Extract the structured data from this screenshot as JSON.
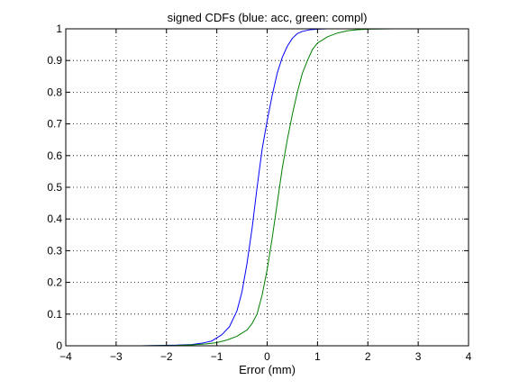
{
  "chart_data": {
    "type": "line",
    "title": "signed CDFs (blue: acc, green: compl)",
    "xlabel": "Error (mm)",
    "ylabel": "",
    "xlim": [
      -4,
      4
    ],
    "ylim": [
      0,
      1
    ],
    "xticks": [
      -4,
      -3,
      -2,
      -1,
      0,
      1,
      2,
      3,
      4
    ],
    "yticks": [
      0,
      0.1,
      0.2,
      0.3,
      0.4,
      0.5,
      0.6,
      0.7,
      0.8,
      0.9,
      1
    ],
    "xtick_labels": [
      "−4",
      "−3",
      "−2",
      "−1",
      "0",
      "1",
      "2",
      "3",
      "4"
    ],
    "ytick_labels": [
      "0",
      "0.1",
      "0.2",
      "0.3",
      "0.4",
      "0.5",
      "0.6",
      "0.7",
      "0.8",
      "0.9",
      "1"
    ],
    "grid": true,
    "series": [
      {
        "color": "#0000ff",
        "x": [
          -4,
          -2.5,
          -1.8,
          -1.5,
          -1.3,
          -1.1,
          -0.9,
          -0.75,
          -0.6,
          -0.5,
          -0.4,
          -0.3,
          -0.2,
          -0.1,
          0,
          0.1,
          0.2,
          0.3,
          0.4,
          0.5,
          0.6,
          0.7,
          0.85,
          1.0,
          1.2,
          1.5,
          2,
          4
        ],
        "y": [
          0,
          0,
          0.002,
          0.004,
          0.008,
          0.015,
          0.035,
          0.06,
          0.11,
          0.17,
          0.26,
          0.37,
          0.5,
          0.62,
          0.71,
          0.79,
          0.86,
          0.91,
          0.945,
          0.97,
          0.985,
          0.992,
          0.997,
          0.999,
          1,
          1,
          1,
          1
        ]
      },
      {
        "color": "#008000",
        "x": [
          -4,
          -2.5,
          -1.8,
          -1.5,
          -1.2,
          -1.0,
          -0.8,
          -0.6,
          -0.4,
          -0.3,
          -0.2,
          -0.1,
          0,
          0.1,
          0.2,
          0.3,
          0.4,
          0.5,
          0.6,
          0.7,
          0.8,
          0.9,
          1.0,
          1.2,
          1.4,
          1.6,
          1.8,
          2.0,
          2.5,
          4
        ],
        "y": [
          0,
          0,
          0.001,
          0.003,
          0.006,
          0.01,
          0.018,
          0.03,
          0.05,
          0.07,
          0.1,
          0.16,
          0.24,
          0.34,
          0.45,
          0.56,
          0.65,
          0.73,
          0.8,
          0.86,
          0.9,
          0.935,
          0.955,
          0.975,
          0.987,
          0.994,
          0.997,
          0.999,
          1,
          1
        ]
      }
    ]
  }
}
